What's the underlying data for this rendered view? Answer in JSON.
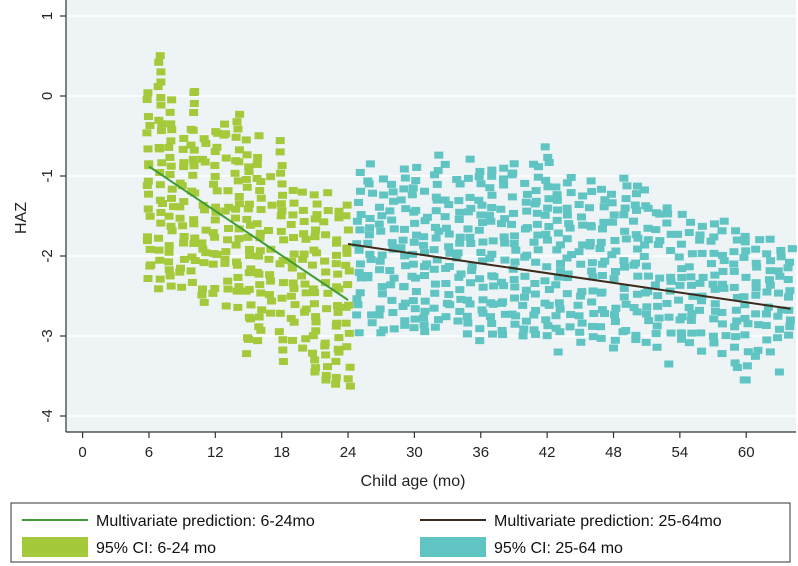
{
  "chart_data": {
    "type": "scatter",
    "title": "",
    "xlabel": "Child age (mo)",
    "ylabel": "HAZ",
    "xlim": [
      -1.5,
      64.5
    ],
    "ylim": [
      -4.2,
      1.2
    ],
    "x_ticks": [
      0,
      6,
      12,
      18,
      24,
      30,
      36,
      42,
      48,
      54,
      60
    ],
    "y_ticks": [
      1,
      0,
      -1,
      -2,
      -3,
      -4
    ],
    "grid": true,
    "legend_position": "bottom",
    "colors": {
      "green_line": "#3f9c35",
      "brown_line": "#3b2a1a",
      "green_points": "#a4c93a",
      "teal_points": "#5fc4c2",
      "plot_background": "#eef3f6",
      "grid": "#ffffff"
    },
    "series": [
      {
        "name": "Multivariate prediction: 6-24mo",
        "type": "line",
        "color": "#3f9c35",
        "x": [
          6,
          24
        ],
        "y": [
          -0.88,
          -2.55
        ]
      },
      {
        "name": "Multivariate prediction: 25-64mo",
        "type": "line",
        "color": "#3b2a1a",
        "x": [
          24,
          64
        ],
        "y": [
          -1.85,
          -2.66
        ]
      },
      {
        "name": "95% CI: 6-24 mo",
        "type": "scatter",
        "color": "#a4c93a",
        "ranges": [
          [
            6,
            -2.3,
            0.1
          ],
          [
            7,
            -2.4,
            0.55
          ],
          [
            8,
            -2.4,
            -0.1
          ],
          [
            9,
            -2.5,
            -0.45
          ],
          [
            10,
            -2.3,
            0.1
          ],
          [
            11,
            -2.6,
            -0.5
          ],
          [
            12,
            -2.5,
            -0.4
          ],
          [
            13,
            -2.6,
            -0.3
          ],
          [
            14,
            -2.7,
            -0.2
          ],
          [
            15,
            -3.2,
            -0.6
          ],
          [
            16,
            -3.1,
            -0.5
          ],
          [
            17,
            -2.8,
            -0.9
          ],
          [
            18,
            -3.3,
            -0.6
          ],
          [
            19,
            -3.0,
            -1.2
          ],
          [
            20,
            -3.1,
            -1.0
          ],
          [
            21,
            -3.4,
            -1.2
          ],
          [
            22,
            -3.5,
            -1.1
          ],
          [
            23,
            -3.6,
            -1.3
          ],
          [
            24,
            -3.6,
            -1.4
          ]
        ],
        "isolated_points": [
          [
            21,
            -3.45
          ],
          [
            22,
            -3.55
          ]
        ]
      },
      {
        "name": "95% CI: 25-64 mo",
        "type": "scatter",
        "color": "#5fc4c2",
        "ranges": [
          [
            25,
            -2.9,
            -0.9
          ],
          [
            26,
            -2.8,
            -0.9
          ],
          [
            27,
            -3.0,
            -1.0
          ],
          [
            28,
            -2.9,
            -1.1
          ],
          [
            29,
            -2.9,
            -0.95
          ],
          [
            30,
            -2.9,
            -0.9
          ],
          [
            31,
            -3.0,
            -1.0
          ],
          [
            32,
            -2.9,
            -0.65
          ],
          [
            33,
            -2.9,
            -0.9
          ],
          [
            34,
            -2.8,
            -1.0
          ],
          [
            35,
            -3.0,
            -0.8
          ],
          [
            36,
            -3.0,
            -0.9
          ],
          [
            37,
            -3.0,
            -0.8
          ],
          [
            38,
            -3.0,
            -0.9
          ],
          [
            39,
            -2.9,
            -0.8
          ],
          [
            40,
            -3.0,
            -1.0
          ],
          [
            41,
            -3.0,
            -0.8
          ],
          [
            42,
            -3.0,
            -0.65
          ],
          [
            43,
            -3.0,
            -1.0
          ],
          [
            44,
            -3.0,
            -1.0
          ],
          [
            45,
            -3.1,
            -1.1
          ],
          [
            46,
            -3.0,
            -1.1
          ],
          [
            47,
            -3.0,
            -1.2
          ],
          [
            48,
            -3.1,
            -1.2
          ],
          [
            49,
            -3.0,
            -1.0
          ],
          [
            50,
            -3.1,
            -1.1
          ],
          [
            51,
            -3.1,
            -1.2
          ],
          [
            52,
            -3.1,
            -1.4
          ],
          [
            53,
            -3.1,
            -1.4
          ],
          [
            54,
            -3.1,
            -1.5
          ],
          [
            55,
            -3.1,
            -1.4
          ],
          [
            56,
            -3.2,
            -1.6
          ],
          [
            57,
            -3.2,
            -1.6
          ],
          [
            58,
            -3.2,
            -1.6
          ],
          [
            59,
            -3.4,
            -1.7
          ],
          [
            60,
            -3.5,
            -1.7
          ],
          [
            61,
            -3.3,
            -1.8
          ],
          [
            62,
            -3.2,
            -1.8
          ],
          [
            63,
            -3.0,
            -1.9
          ],
          [
            64,
            -3.0,
            -1.8
          ]
        ],
        "isolated_points": [
          [
            43,
            -3.2
          ],
          [
            48,
            -3.15
          ],
          [
            53,
            -3.35
          ],
          [
            60,
            -3.55
          ],
          [
            63,
            -3.45
          ]
        ]
      }
    ],
    "legend": [
      {
        "label": "Multivariate prediction: 6-24mo",
        "kind": "line",
        "color": "#3f9c35"
      },
      {
        "label": "Multivariate prediction: 25-64mo",
        "kind": "line",
        "color": "#3b2a1a"
      },
      {
        "label": "95% CI: 6-24 mo",
        "kind": "box",
        "color": "#a4c93a"
      },
      {
        "label": "95% CI: 25-64 mo",
        "kind": "box",
        "color": "#5fc4c2"
      }
    ]
  }
}
